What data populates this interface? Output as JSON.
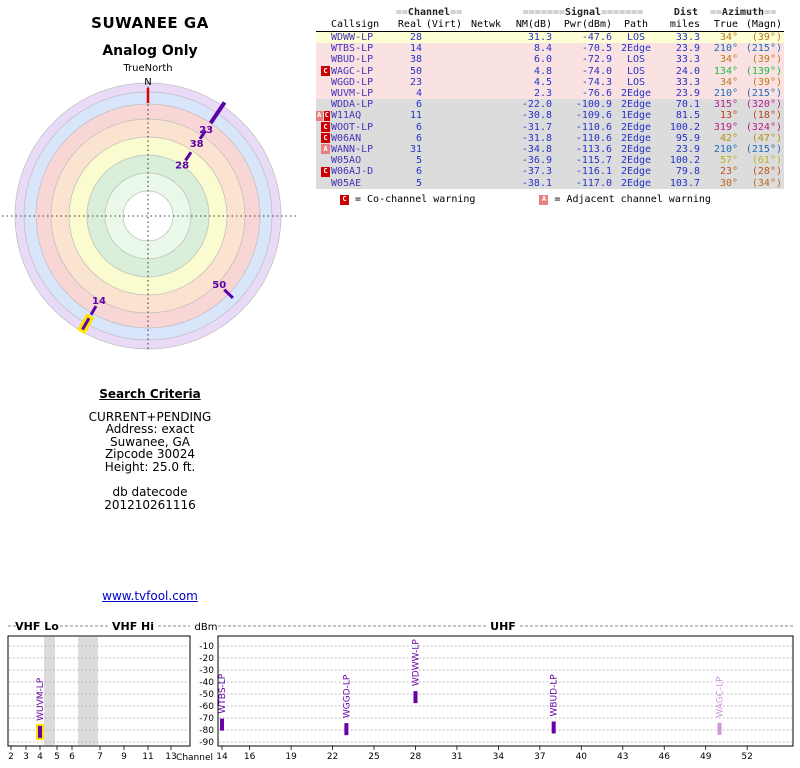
{
  "title": {
    "line1": "SUWANEE GA",
    "line2": "Analog Only"
  },
  "radar": {
    "true_north_label": "TrueNorth",
    "north_label": "N"
  },
  "table": {
    "groups": {
      "channel": {
        "pre": "==",
        "label": "Channel",
        "post": "=="
      },
      "signal": {
        "pre": "=======",
        "label": "Signal",
        "post": "======="
      },
      "dist": "Dist",
      "azimuth": {
        "pre": "==",
        "label": "Azimuth",
        "post": "=="
      }
    },
    "headers": {
      "callsign": "Callsign",
      "real": "Real",
      "virt": "(Virt)",
      "netwk": "Netwk",
      "nm": "NM(dB)",
      "pwr": "Pwr(dBm)",
      "path": "Path",
      "miles": "miles",
      "true": "True",
      "magn": "(Magn)"
    },
    "rows": [
      {
        "warn": [],
        "callsign": "WDWW-LP",
        "real": "28",
        "virt": "",
        "netwk": "",
        "nm": "31.3",
        "pwr": "-47.6",
        "path": "LOS",
        "miles": "33.3",
        "true": "34°",
        "magn": "(39°)",
        "bg": "#ffffd6"
      },
      {
        "warn": [],
        "callsign": "WTBS-LP",
        "real": "14",
        "virt": "",
        "netwk": "",
        "nm": "8.4",
        "pwr": "-70.5",
        "path": "2Edge",
        "miles": "23.9",
        "true": "210°",
        "magn": "(215°)",
        "bg": "#fbe2e2"
      },
      {
        "warn": [],
        "callsign": "WBUD-LP",
        "real": "38",
        "virt": "",
        "netwk": "",
        "nm": "6.0",
        "pwr": "-72.9",
        "path": "LOS",
        "miles": "33.3",
        "true": "34°",
        "magn": "(39°)",
        "bg": "#fbe2e2"
      },
      {
        "warn": [
          "C"
        ],
        "callsign": "WAGC-LP",
        "real": "50",
        "virt": "",
        "netwk": "",
        "nm": "4.8",
        "pwr": "-74.0",
        "path": "LOS",
        "miles": "24.0",
        "true": "134°",
        "magn": "(139°)",
        "bg": "#fbe2e2"
      },
      {
        "warn": [],
        "callsign": "WGGD-LP",
        "real": "23",
        "virt": "",
        "netwk": "",
        "nm": "4.5",
        "pwr": "-74.3",
        "path": "LOS",
        "miles": "33.3",
        "true": "34°",
        "magn": "(39°)",
        "bg": "#fbe2e2"
      },
      {
        "warn": [],
        "callsign": "WUVM-LP",
        "real": "4",
        "virt": "",
        "netwk": "",
        "nm": "2.3",
        "pwr": "-76.6",
        "path": "2Edge",
        "miles": "23.9",
        "true": "210°",
        "magn": "(215°)",
        "bg": "#fbe2e2"
      },
      {
        "warn": [],
        "callsign": "WDDA-LP",
        "real": "6",
        "virt": "",
        "netwk": "",
        "nm": "-22.0",
        "pwr": "-100.9",
        "path": "2Edge",
        "miles": "70.1",
        "true": "315°",
        "magn": "(320°)",
        "bg": "#dcdcdc"
      },
      {
        "warn": [
          "A",
          "C"
        ],
        "callsign": "W11AQ",
        "real": "11",
        "virt": "",
        "netwk": "",
        "nm": "-30.8",
        "pwr": "-109.6",
        "path": "1Edge",
        "miles": "81.5",
        "true": "13°",
        "magn": "(18°)",
        "bg": "#dcdcdc"
      },
      {
        "warn": [
          "C"
        ],
        "callsign": "WOOT-LP",
        "real": "6",
        "virt": "",
        "netwk": "",
        "nm": "-31.7",
        "pwr": "-110.6",
        "path": "2Edge",
        "miles": "100.2",
        "true": "319°",
        "magn": "(324°)",
        "bg": "#dcdcdc"
      },
      {
        "warn": [
          "C"
        ],
        "callsign": "W06AN",
        "real": "6",
        "virt": "",
        "netwk": "",
        "nm": "-31.8",
        "pwr": "-110.6",
        "path": "2Edge",
        "miles": "95.9",
        "true": "42°",
        "magn": "(47°)",
        "bg": "#dcdcdc"
      },
      {
        "warn": [
          "A"
        ],
        "callsign": "WANN-LP",
        "real": "31",
        "virt": "",
        "netwk": "",
        "nm": "-34.8",
        "pwr": "-113.6",
        "path": "2Edge",
        "miles": "23.9",
        "true": "210°",
        "magn": "(215°)",
        "bg": "#dcdcdc"
      },
      {
        "warn": [],
        "callsign": "W05AO",
        "real": "5",
        "virt": "",
        "netwk": "",
        "nm": "-36.9",
        "pwr": "-115.7",
        "path": "2Edge",
        "miles": "100.2",
        "true": "57°",
        "magn": "(61°)",
        "bg": "#dcdcdc"
      },
      {
        "warn": [
          "C"
        ],
        "callsign": "W06AJ-D",
        "real": "6",
        "virt": "",
        "netwk": "",
        "nm": "-37.3",
        "pwr": "-116.1",
        "path": "2Edge",
        "miles": "79.8",
        "true": "23°",
        "magn": "(28°)",
        "bg": "#dcdcdc"
      },
      {
        "warn": [],
        "callsign": "W05AE",
        "real": "5",
        "virt": "",
        "netwk": "",
        "nm": "-38.1",
        "pwr": "-117.0",
        "path": "2Edge",
        "miles": "103.7",
        "true": "30°",
        "magn": "(34°)",
        "bg": "#dcdcdc"
      }
    ],
    "legend": {
      "c_badge": "C",
      "c_text": "= Co-channel warning",
      "a_badge": "A",
      "a_text": "= Adjacent channel warning"
    }
  },
  "search": {
    "title": "Search Criteria",
    "lines": [
      "CURRENT+PENDING",
      "Address: exact",
      "Suwanee, GA",
      "Zipcode 30024",
      "Height: 25.0 ft."
    ],
    "datecode_label": "db datecode",
    "datecode": "201210261116"
  },
  "link": {
    "text": "www.tvfool.com"
  },
  "levels": {
    "band_vhf_lo": "VHF Lo",
    "band_vhf_hi": "VHF Hi",
    "band_uhf": "UHF",
    "dbm_label": "dBm",
    "channel_label": "Channel"
  },
  "chart_data": [
    {
      "type": "radar-polar",
      "title": "Analog station azimuth plot (0° = true north at top, clockwise; stronger signals closer to center)",
      "rings_outer_to_inner": [
        {
          "r": 133,
          "color": "#e9dbf7"
        },
        {
          "r": 124,
          "color": "#d9e5fa"
        },
        {
          "r": 112,
          "color": "#f8d6d6"
        },
        {
          "r": 97,
          "color": "#fae3cf"
        },
        {
          "r": 79,
          "color": "#fbfbd0"
        },
        {
          "r": 61,
          "color": "#d9efd9"
        },
        {
          "r": 43,
          "color": "#e9f8e9"
        },
        {
          "r": 25,
          "color": "#ffffff"
        }
      ],
      "stations": [
        {
          "channel": "23",
          "callsign": "WGGD-LP",
          "azimuth_true": 34,
          "nm_db": 4.5,
          "label_r": 104,
          "tick_r1": 112,
          "tick_r2": 137,
          "tick_w": 4
        },
        {
          "channel": "38",
          "callsign": "WBUD-LP",
          "azimuth_true": 34,
          "nm_db": 6.0,
          "label_r": 87,
          "tick_r1": 93,
          "tick_r2": 103,
          "tick_w": 3
        },
        {
          "channel": "28",
          "callsign": "WDWW-LP",
          "azimuth_true": 34,
          "nm_db": 31.3,
          "label_r": 61,
          "tick_r1": 67,
          "tick_r2": 77,
          "tick_w": 3
        },
        {
          "channel": "50",
          "callsign": "WAGC-LP",
          "azimuth_true": 134,
          "nm_db": 4.8,
          "label_r": 99,
          "tick_r1": 106,
          "tick_r2": 118,
          "tick_w": 3
        },
        {
          "channel": "14",
          "callsign": "WTBS-LP",
          "azimuth_true": 210,
          "nm_db": 8.4,
          "label_r": 98,
          "tick_r1": 104,
          "tick_r2": 114,
          "tick_w": 3
        },
        {
          "channel": "",
          "callsign": "WUVM-LP",
          "azimuth_true": 210,
          "nm_db": 2.3,
          "label_r": 0,
          "tick_r1": 118,
          "tick_r2": 131,
          "tick_w": 3,
          "highlight": true
        }
      ],
      "marker_color": "#5c00a8",
      "highlight_color": "#ffe400"
    },
    {
      "type": "bar",
      "title": "Signal power by channel",
      "ylabel": "dBm",
      "ylim": [
        -90,
        -10
      ],
      "y_ticks": [
        -10,
        -20,
        -30,
        -40,
        -50,
        -60,
        -70,
        -80,
        -90
      ],
      "x_vhf_ticks": [
        2,
        3,
        4,
        5,
        6,
        7,
        9,
        11,
        13
      ],
      "x_uhf_ticks": [
        14,
        16,
        19,
        22,
        25,
        28,
        31,
        34,
        37,
        40,
        43,
        46,
        49,
        52
      ],
      "signals": [
        {
          "callsign": "WUVM-LP",
          "channel": 4,
          "dbm": -76.6,
          "highlight": true
        },
        {
          "callsign": "WTBS-LP",
          "channel": 14,
          "dbm": -70.5
        },
        {
          "callsign": "WGGD-LP",
          "channel": 23,
          "dbm": -74.3
        },
        {
          "callsign": "WDWW-LP",
          "channel": 28,
          "dbm": -47.6
        },
        {
          "callsign": "WBUD-LP",
          "channel": 38,
          "dbm": -72.9
        },
        {
          "callsign": "WAGC-LP",
          "channel": 50,
          "dbm": -74.0,
          "faint": true
        }
      ],
      "bar_color": "#6a00a8",
      "faint_color": "#cf97dc",
      "highlight_color": "#ffe400"
    }
  ]
}
